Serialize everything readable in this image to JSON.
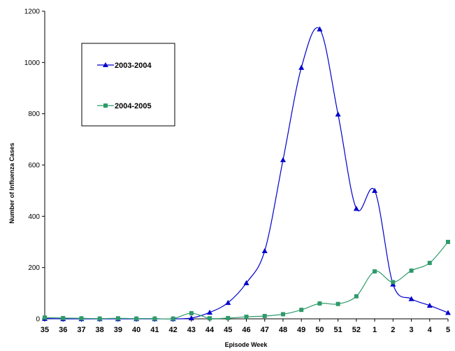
{
  "chart_data": {
    "type": "line",
    "title": "",
    "xlabel": "Episode Week",
    "ylabel": "Number of Influenza Cases",
    "ylim": [
      0,
      1200
    ],
    "yticks": [
      0,
      200,
      400,
      600,
      800,
      1000,
      1200
    ],
    "categories": [
      "35",
      "36",
      "37",
      "38",
      "39",
      "40",
      "41",
      "42",
      "43",
      "44",
      "45",
      "46",
      "47",
      "48",
      "49",
      "50",
      "51",
      "52",
      "1",
      "2",
      "3",
      "4",
      "5"
    ],
    "grid": false,
    "legend_position": "top-left",
    "series": [
      {
        "name": "2003-2004",
        "color": "#0000cc",
        "marker": "triangle",
        "values": [
          1,
          0,
          0,
          0,
          0,
          0,
          0,
          0,
          3,
          25,
          63,
          140,
          265,
          620,
          980,
          1130,
          798,
          430,
          500,
          135,
          78,
          52,
          24
        ]
      },
      {
        "name": "2004-2005",
        "color": "#2e9a6a",
        "marker": "square",
        "values": [
          5,
          3,
          2,
          1,
          2,
          1,
          1,
          1,
          22,
          2,
          3,
          8,
          11,
          18,
          35,
          60,
          58,
          88,
          185,
          143,
          188,
          218,
          300
        ]
      }
    ]
  }
}
